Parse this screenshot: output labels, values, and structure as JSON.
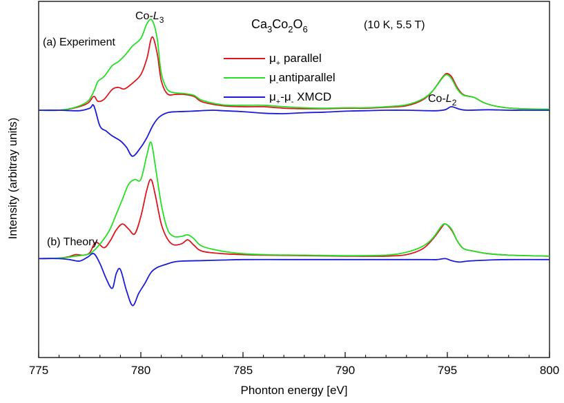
{
  "chart_data": {
    "type": "line",
    "xlabel": "Phonton energy [eV]",
    "ylabel": "Intensity (arbitray units)",
    "xlim": [
      775,
      800
    ],
    "ylim": [
      -1.0,
      6.2
    ],
    "x_ticks": [
      "775",
      "780",
      "785",
      "790",
      "795",
      "800"
    ],
    "annotations": {
      "edge_l3": {
        "base": "Co-",
        "italic": "L",
        "sub": "3"
      },
      "edge_l2": {
        "base": "Co-",
        "italic": "L",
        "sub": "2"
      },
      "formula": {
        "p1": "Ca",
        "s1": "3",
        "p2": "Co",
        "s2": "2",
        "p3": "O",
        "s3": "6"
      },
      "conditions": "(10 K, 5.5 T)",
      "panel_a": "(a) Experiment",
      "panel_b": "(b) Theory"
    },
    "legend": {
      "placement": "top-center",
      "entries": [
        {
          "mu": "μ",
          "sub": "+",
          "text": " parallel",
          "color": "#e0141e"
        },
        {
          "mu": "μ",
          "sub": "-",
          "text": "antiparallel",
          "color": "#22e022"
        },
        {
          "mu": "μ",
          "sub": "+",
          "mid": "-μ",
          "sub2": "-",
          "text": " XMCD",
          "color": "#1a1adc"
        }
      ]
    },
    "panels": [
      {
        "name": "(a) Experiment",
        "series": [
          {
            "name": "μ+ parallel",
            "color": "#e0141e",
            "x": [
              775,
              776,
              776.8,
              777.4,
              777.7,
              777.9,
              778.2,
              778.6,
              778.9,
              779.2,
              779.6,
              780.0,
              780.3,
              780.55,
              780.8,
              781.0,
              781.3,
              781.7,
              782.1,
              782.6,
              783.0,
              784,
              785,
              786,
              787,
              788,
              789,
              790,
              791,
              792,
              793,
              793.8,
              794.3,
              794.7,
              794.95,
              795.2,
              795.5,
              795.8,
              796.3,
              796.8,
              797.5,
              798.5,
              800
            ],
            "y": [
              4.0,
              4.0,
              4.05,
              4.14,
              4.28,
              4.18,
              4.22,
              4.42,
              4.46,
              4.43,
              4.55,
              4.72,
              5.05,
              5.48,
              5.15,
              4.6,
              4.33,
              4.32,
              4.32,
              4.28,
              4.17,
              4.09,
              4.07,
              4.07,
              4.04,
              4.03,
              4.03,
              4.04,
              4.04,
              4.06,
              4.09,
              4.21,
              4.4,
              4.63,
              4.74,
              4.68,
              4.45,
              4.31,
              4.26,
              4.15,
              4.07,
              4.03,
              4.02
            ]
          },
          {
            "name": "μ- antiparallel",
            "color": "#22e022",
            "x": [
              775,
              776,
              776.8,
              777.4,
              777.7,
              777.9,
              778.2,
              778.6,
              778.9,
              779.2,
              779.6,
              780.0,
              780.3,
              780.55,
              780.8,
              781.0,
              781.3,
              781.7,
              782.1,
              782.6,
              783.0,
              784,
              785,
              786,
              787,
              788,
              789,
              790,
              791,
              792,
              793,
              793.8,
              794.3,
              794.7,
              794.95,
              795.2,
              795.5,
              795.8,
              796.3,
              796.8,
              797.5,
              798.5,
              800
            ],
            "y": [
              4.0,
              4.0,
              4.06,
              4.18,
              4.38,
              4.58,
              4.68,
              4.9,
              4.98,
              5.1,
              5.3,
              5.45,
              5.75,
              5.82,
              5.45,
              4.75,
              4.42,
              4.35,
              4.34,
              4.3,
              4.2,
              4.11,
              4.1,
              4.1,
              4.07,
              4.05,
              4.04,
              4.05,
              4.05,
              4.07,
              4.11,
              4.23,
              4.4,
              4.62,
              4.72,
              4.64,
              4.42,
              4.3,
              4.26,
              4.15,
              4.07,
              4.03,
              4.02
            ]
          },
          {
            "name": "μ+-μ- XMCD",
            "color": "#1a1adc",
            "x": [
              775,
              776,
              777,
              777.5,
              777.7,
              778.0,
              778.3,
              778.6,
              779.0,
              779.3,
              779.6,
              780.0,
              780.3,
              780.6,
              780.9,
              781.3,
              781.8,
              782.5,
              783.5,
              784,
              785,
              786,
              787,
              788,
              789,
              790,
              791,
              792,
              793,
              794,
              794.5,
              794.9,
              795.2,
              795.6,
              796,
              797,
              798,
              799,
              800
            ],
            "y": [
              4.0,
              4.0,
              3.99,
              4.04,
              4.09,
              3.68,
              3.58,
              3.48,
              3.38,
              3.25,
              3.07,
              3.25,
              3.45,
              3.7,
              3.86,
              3.95,
              3.97,
              3.98,
              4.0,
              3.99,
              3.97,
              3.94,
              3.93,
              3.95,
              3.96,
              3.98,
              3.99,
              4.0,
              4.0,
              3.99,
              3.99,
              4.01,
              4.07,
              4.02,
              4.0,
              4.01,
              4.0,
              4.0,
              4.0
            ]
          }
        ]
      },
      {
        "name": "(b) Theory",
        "series": [
          {
            "name": "μ+ parallel",
            "color": "#e0141e",
            "x": [
              775,
              776,
              776.5,
              776.8,
              777.2,
              777.5,
              777.8,
              778.2,
              778.5,
              778.8,
              779.1,
              779.4,
              779.7,
              780.0,
              780.3,
              780.5,
              780.7,
              781.0,
              781.3,
              781.6,
              782.0,
              782.3,
              782.6,
              783,
              784,
              785,
              786,
              788,
              790,
              792,
              793,
              793.8,
              794.3,
              794.7,
              794.9,
              795.2,
              795.5,
              795.8,
              796.3,
              797,
              798,
              800
            ],
            "y": [
              1.0,
              1.01,
              1.04,
              1.08,
              1.07,
              1.12,
              1.33,
              1.22,
              1.36,
              1.58,
              1.7,
              1.6,
              1.5,
              1.85,
              2.4,
              2.6,
              2.3,
              1.7,
              1.4,
              1.28,
              1.3,
              1.38,
              1.27,
              1.15,
              1.1,
              1.08,
              1.07,
              1.06,
              1.05,
              1.05,
              1.08,
              1.2,
              1.4,
              1.62,
              1.7,
              1.58,
              1.35,
              1.2,
              1.15,
              1.1,
              1.07,
              1.05
            ]
          },
          {
            "name": "μ- antiparallel",
            "color": "#22e022",
            "x": [
              775,
              776,
              776.5,
              776.8,
              777.2,
              777.5,
              777.8,
              778.2,
              778.5,
              778.8,
              779.1,
              779.4,
              779.7,
              780.0,
              780.3,
              780.5,
              780.7,
              781.0,
              781.3,
              781.6,
              782.0,
              782.3,
              782.6,
              783,
              784,
              785,
              786,
              788,
              790,
              792,
              793,
              793.8,
              794.3,
              794.7,
              794.9,
              795.2,
              795.5,
              795.8,
              796.3,
              797,
              798,
              800
            ],
            "y": [
              1.0,
              1.01,
              1.03,
              1.05,
              1.07,
              1.1,
              1.2,
              1.4,
              1.6,
              1.9,
              2.2,
              2.5,
              2.6,
              2.6,
              3.1,
              3.35,
              2.9,
              2.1,
              1.6,
              1.45,
              1.45,
              1.48,
              1.4,
              1.25,
              1.15,
              1.1,
              1.08,
              1.07,
              1.06,
              1.07,
              1.13,
              1.25,
              1.42,
              1.65,
              1.7,
              1.6,
              1.35,
              1.2,
              1.15,
              1.1,
              1.07,
              1.05
            ]
          },
          {
            "name": "μ+-μ- XMCD",
            "color": "#1a1adc",
            "x": [
              775,
              776,
              776.5,
              777.0,
              777.4,
              777.7,
              778.0,
              778.3,
              778.6,
              778.8,
              779.0,
              779.3,
              779.6,
              779.9,
              780.2,
              780.5,
              780.8,
              781.2,
              781.6,
              782,
              783,
              784,
              785,
              787,
              789,
              791,
              793,
              794,
              794.5,
              794.9,
              795.2,
              795.6,
              796,
              797,
              798,
              800
            ],
            "y": [
              1.0,
              1.0,
              0.98,
              0.95,
              1.03,
              1.1,
              0.9,
              0.6,
              0.4,
              0.7,
              0.78,
              0.35,
              0.05,
              0.3,
              0.5,
              0.72,
              0.82,
              0.88,
              0.93,
              0.95,
              0.96,
              0.97,
              0.98,
              0.98,
              0.98,
              0.98,
              0.98,
              0.98,
              0.98,
              1.0,
              0.96,
              0.93,
              0.95,
              0.97,
              0.98,
              0.98
            ]
          }
        ]
      }
    ]
  }
}
